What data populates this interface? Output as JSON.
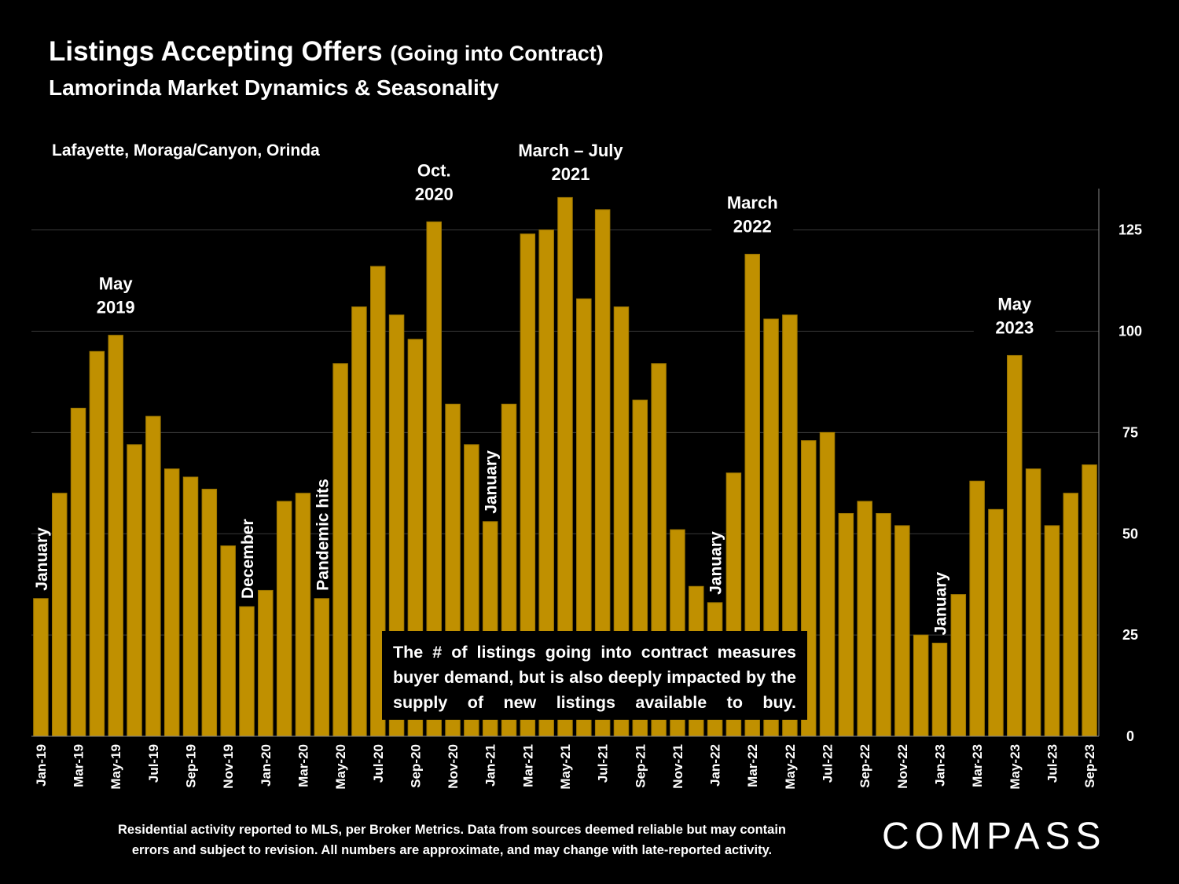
{
  "header": {
    "title": "Listings Accepting Offers",
    "title_suffix": "(Going into Contract)",
    "subtitle": "Lamorinda Market Dynamics & Seasonality",
    "region": "Lafayette, Moraga/Canyon, Orinda"
  },
  "note": "The # of listings going into contract measures buyer demand, but is also deeply impacted by the supply of new listings available to buy.",
  "footer": {
    "line1": "Residential activity reported to MLS, per Broker Metrics. Data from sources deemed reliable but may contain",
    "line2": "errors and subject to revision. All numbers are approximate, and may change with late-reported activity."
  },
  "logo": "COMPASS",
  "colors": {
    "bar": "#C09000",
    "bar_edge": "#9C7600",
    "background": "#000000",
    "grid": "#3a3a3a"
  },
  "chart_data": {
    "type": "bar",
    "months": [
      "Jan-19",
      "Feb-19",
      "Mar-19",
      "Apr-19",
      "May-19",
      "Jun-19",
      "Jul-19",
      "Aug-19",
      "Sep-19",
      "Oct-19",
      "Nov-19",
      "Dec-19",
      "Jan-20",
      "Feb-20",
      "Mar-20",
      "Apr-20",
      "May-20",
      "Jun-20",
      "Jul-20",
      "Aug-20",
      "Sep-20",
      "Oct-20",
      "Nov-20",
      "Dec-20",
      "Jan-21",
      "Feb-21",
      "Mar-21",
      "Apr-21",
      "May-21",
      "Jun-21",
      "Jul-21",
      "Aug-21",
      "Sep-21",
      "Oct-21",
      "Nov-21",
      "Dec-21",
      "Jan-22",
      "Feb-22",
      "Mar-22",
      "Apr-22",
      "May-22",
      "Jun-22",
      "Jul-22",
      "Aug-22",
      "Sep-22",
      "Oct-22",
      "Nov-22",
      "Dec-22",
      "Jan-23",
      "Feb-23",
      "Mar-23",
      "Apr-23",
      "May-23",
      "Jun-23",
      "Jul-23",
      "Aug-23",
      "Sep-23"
    ],
    "values": [
      34,
      60,
      81,
      95,
      99,
      72,
      79,
      66,
      64,
      61,
      47,
      32,
      36,
      58,
      60,
      34,
      92,
      106,
      116,
      104,
      98,
      127,
      82,
      72,
      53,
      82,
      124,
      125,
      133,
      108,
      130,
      106,
      83,
      92,
      51,
      37,
      33,
      65,
      119,
      103,
      104,
      73,
      75,
      55,
      58,
      55,
      52,
      25,
      23,
      35,
      63,
      56,
      94,
      66,
      52,
      60,
      67
    ],
    "ylim": [
      0,
      135
    ],
    "yticks": [
      0,
      25,
      50,
      75,
      100,
      125
    ],
    "y_axis_position": "right",
    "grid": true,
    "legend": "none",
    "annotations": [
      {
        "month": "Jan-19",
        "text": "January",
        "orientation": "vertical"
      },
      {
        "month": "May-19",
        "text": "May\n2019",
        "orientation": "horizontal"
      },
      {
        "month": "Dec-19",
        "text": "December",
        "orientation": "vertical"
      },
      {
        "month": "Apr-20",
        "text": "Pandemic hits",
        "orientation": "vertical"
      },
      {
        "month": "Oct-20",
        "text": "Oct.\n2020",
        "orientation": "horizontal"
      },
      {
        "month": "May-21",
        "text": "March – July\n2021",
        "orientation": "horizontal"
      },
      {
        "month": "Jan-21",
        "text": "January",
        "orientation": "vertical"
      },
      {
        "month": "Jan-22",
        "text": "January",
        "orientation": "vertical"
      },
      {
        "month": "Mar-22",
        "text": "March\n2022",
        "orientation": "horizontal"
      },
      {
        "month": "Jan-23",
        "text": "January",
        "orientation": "vertical"
      },
      {
        "month": "May-23",
        "text": "May\n2023",
        "orientation": "horizontal"
      }
    ]
  }
}
